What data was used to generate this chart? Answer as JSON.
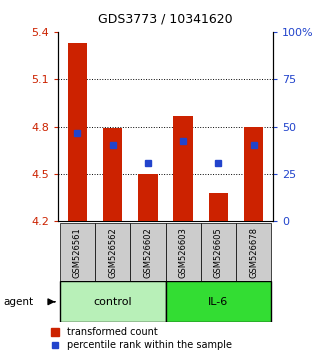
{
  "title": "GDS3773 / 10341620",
  "samples": [
    "GSM526561",
    "GSM526562",
    "GSM526602",
    "GSM526603",
    "GSM526605",
    "GSM526678"
  ],
  "bar_values": [
    5.33,
    4.79,
    4.5,
    4.87,
    4.38,
    4.8
  ],
  "percentile_values": [
    4.76,
    4.68,
    4.57,
    4.71,
    4.57,
    4.68
  ],
  "y_min": 4.2,
  "y_max": 5.4,
  "y_ticks": [
    4.2,
    4.5,
    4.8,
    5.1,
    5.4
  ],
  "y2_ticks": [
    0,
    25,
    50,
    75,
    100
  ],
  "bar_color": "#cc2200",
  "percentile_color": "#2244cc",
  "control_color": "#b8f0b8",
  "il6_color": "#33dd33",
  "sample_bg_color": "#cccccc",
  "left_axis_color": "#cc2200",
  "right_axis_color": "#2244cc",
  "bar_width": 0.55,
  "percentile_marker_size": 5,
  "title_fontsize": 9,
  "axis_fontsize": 8,
  "sample_fontsize": 6,
  "group_fontsize": 8,
  "legend_fontsize": 7
}
